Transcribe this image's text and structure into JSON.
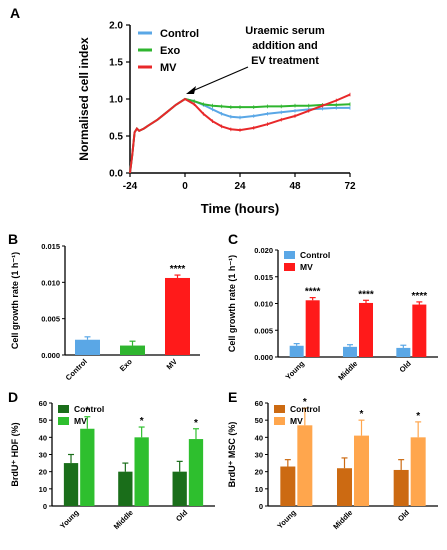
{
  "chart_data": [
    {
      "panel": "A",
      "type": "line",
      "xlabel": "Time (hours)",
      "ylabel": "Normalised cell index",
      "xlim": [
        -24,
        72
      ],
      "ylim": [
        0.0,
        2.0
      ],
      "xticks": [
        -24,
        0,
        24,
        48,
        72
      ],
      "yticks": [
        "0.0",
        "0.5",
        "1.0",
        "1.5",
        "2.0"
      ],
      "annotation": [
        "Uraemic serum",
        "addition and",
        "EV treatment"
      ],
      "legend_position": "top-left",
      "series": [
        {
          "name": "Control",
          "color": "#5aa7e6",
          "x": [
            -24,
            -23,
            -22,
            -21,
            -20,
            -18,
            -16,
            -12,
            -8,
            -4,
            0,
            4,
            8,
            12,
            16,
            20,
            24,
            30,
            36,
            42,
            48,
            54,
            60,
            66,
            72
          ],
          "y": [
            0.0,
            0.25,
            0.55,
            0.6,
            0.57,
            0.6,
            0.64,
            0.72,
            0.82,
            0.92,
            1.0,
            0.97,
            0.92,
            0.86,
            0.8,
            0.76,
            0.75,
            0.77,
            0.8,
            0.82,
            0.84,
            0.86,
            0.87,
            0.88,
            0.88
          ]
        },
        {
          "name": "Exo",
          "color": "#2fb52f",
          "x": [
            -24,
            -23,
            -22,
            -21,
            -20,
            -18,
            -16,
            -12,
            -8,
            -4,
            0,
            4,
            8,
            12,
            16,
            20,
            24,
            30,
            36,
            42,
            48,
            54,
            60,
            66,
            72
          ],
          "y": [
            0.0,
            0.25,
            0.55,
            0.6,
            0.57,
            0.6,
            0.64,
            0.72,
            0.82,
            0.92,
            1.0,
            0.97,
            0.93,
            0.91,
            0.9,
            0.89,
            0.89,
            0.89,
            0.9,
            0.9,
            0.91,
            0.91,
            0.92,
            0.92,
            0.93
          ]
        },
        {
          "name": "MV",
          "color": "#e8282a",
          "x": [
            -24,
            -23,
            -22,
            -21,
            -20,
            -18,
            -16,
            -12,
            -8,
            -4,
            0,
            4,
            8,
            12,
            16,
            20,
            24,
            30,
            36,
            42,
            48,
            54,
            60,
            66,
            72
          ],
          "y": [
            0.0,
            0.25,
            0.55,
            0.6,
            0.57,
            0.6,
            0.64,
            0.72,
            0.82,
            0.92,
            1.0,
            0.93,
            0.8,
            0.7,
            0.63,
            0.59,
            0.58,
            0.61,
            0.66,
            0.72,
            0.77,
            0.84,
            0.91,
            0.98,
            1.06
          ]
        }
      ]
    },
    {
      "panel": "B",
      "type": "bar",
      "ylabel": "Cell growth rate (1 h⁻¹)",
      "ylim": [
        0,
        0.015
      ],
      "yticks": [
        "0.000",
        "0.005",
        "0.010",
        "0.015"
      ],
      "categories": [
        "Control",
        "Exo",
        "MV"
      ],
      "values": [
        0.0021,
        0.0013,
        0.0106
      ],
      "errors": [
        0.0004,
        0.0006,
        0.0004
      ],
      "colors": [
        "#5aa7e6",
        "#2fb52f",
        "#ff1a1a"
      ],
      "significance": [
        "",
        "",
        "****"
      ]
    },
    {
      "panel": "C",
      "type": "bar",
      "ylabel": "Cell growth rate (1 h⁻¹)",
      "ylim": [
        0,
        0.02
      ],
      "yticks": [
        "0.000",
        "0.005",
        "0.010",
        "0.015",
        "0.020"
      ],
      "categories": [
        "Young",
        "Middle",
        "Old"
      ],
      "legend_position": "top-left",
      "series": [
        {
          "name": "Control",
          "color": "#5aa7e6",
          "values": [
            0.0021,
            0.0019,
            0.0017
          ],
          "errors": [
            0.0004,
            0.0004,
            0.0005
          ]
        },
        {
          "name": "MV",
          "color": "#ff1a1a",
          "values": [
            0.0106,
            0.0101,
            0.0098
          ],
          "errors": [
            0.0005,
            0.0005,
            0.0005
          ]
        }
      ],
      "significance": [
        "****",
        "****",
        "****"
      ]
    },
    {
      "panel": "D",
      "type": "bar",
      "ylabel": "BrdU⁺ HDF (%)",
      "ylim": [
        0,
        60
      ],
      "yticks": [
        "0",
        "10",
        "20",
        "30",
        "40",
        "50",
        "60"
      ],
      "categories": [
        "Young",
        "Middle",
        "Old"
      ],
      "legend_position": "top-left",
      "series": [
        {
          "name": "Control",
          "color": "#1a6e1a",
          "values": [
            25,
            20,
            20
          ],
          "errors": [
            5,
            5,
            6
          ]
        },
        {
          "name": "MV",
          "color": "#2ebf2e",
          "values": [
            45,
            40,
            39
          ],
          "errors": [
            7,
            6,
            6
          ]
        }
      ],
      "significance": [
        "*",
        "*",
        "*"
      ]
    },
    {
      "panel": "E",
      "type": "bar",
      "ylabel": "BrdU⁺ MSC (%)",
      "ylim": [
        0,
        60
      ],
      "yticks": [
        "0",
        "10",
        "20",
        "30",
        "40",
        "50",
        "60"
      ],
      "categories": [
        "Young",
        "Middle",
        "Old"
      ],
      "legend_position": "top-left",
      "series": [
        {
          "name": "Control",
          "color": "#cc6a12",
          "values": [
            23,
            22,
            21
          ],
          "errors": [
            4,
            6,
            6
          ]
        },
        {
          "name": "MV",
          "color": "#ffa64d",
          "values": [
            47,
            41,
            40
          ],
          "errors": [
            10,
            9,
            9
          ]
        }
      ],
      "significance": [
        "*",
        "*",
        "*"
      ]
    }
  ]
}
